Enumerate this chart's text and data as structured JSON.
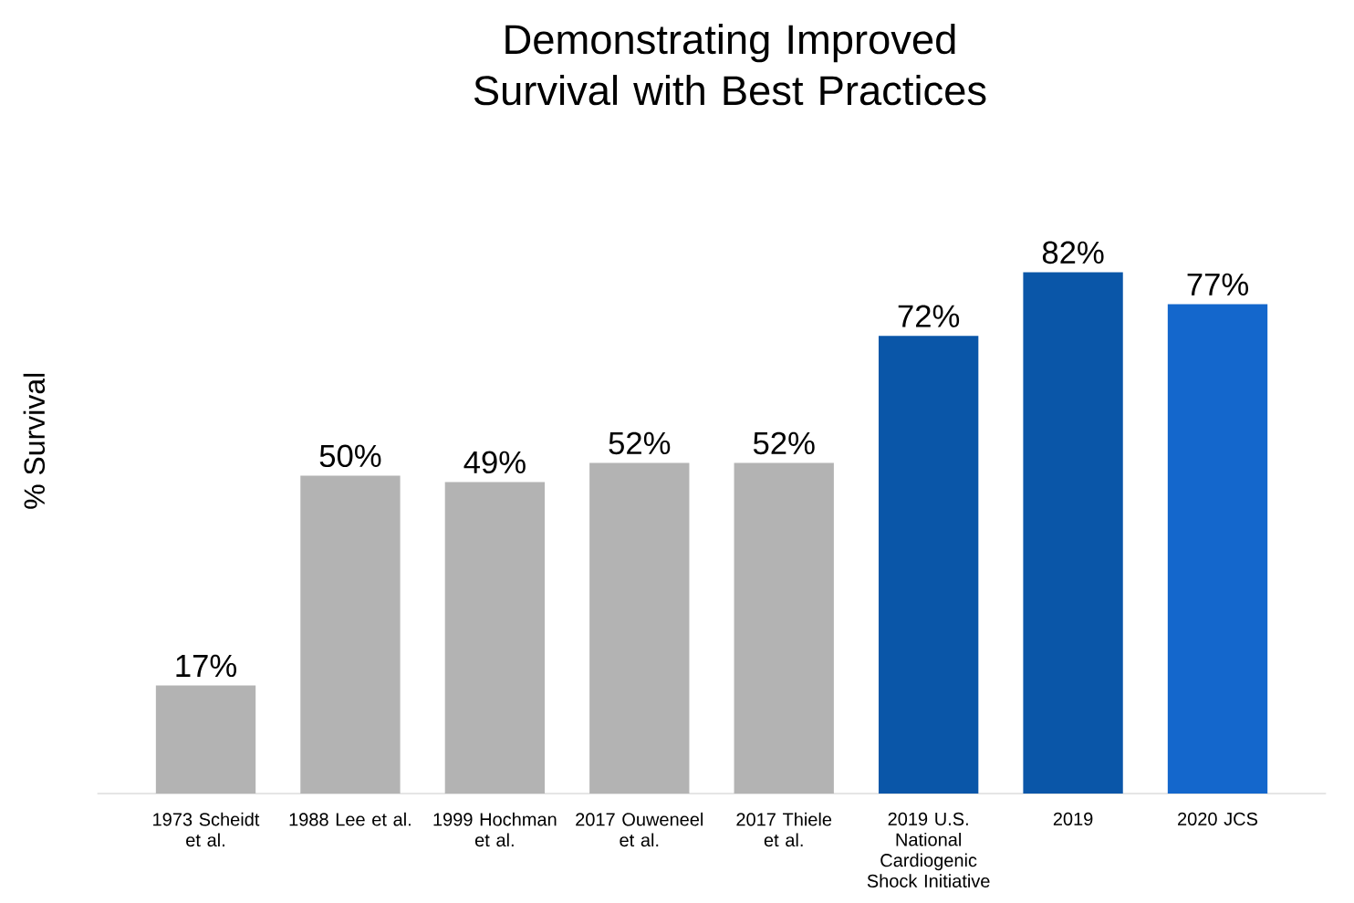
{
  "chart_data": {
    "type": "bar",
    "title": "Demonstrating Improved Survival with Best Practices",
    "ylabel": "% Survival",
    "categories": [
      "1973 Scheidt et al.",
      "1988 Lee et al.",
      "1999 Hochman et al.",
      "2017 Ouweneel et al.",
      "2017 Thiele et al.",
      "2019 U.S. National Cardiogenic Shock Initiative",
      "2019",
      "2020 JCS"
    ],
    "values": [
      17,
      50,
      49,
      52,
      52,
      72,
      82,
      77
    ],
    "value_labels": [
      "17%",
      "50%",
      "49%",
      "52%",
      "52%",
      "72%",
      "82%",
      "77%"
    ],
    "colors": [
      "#b3b3b3",
      "#b3b3b3",
      "#b3b3b3",
      "#b3b3b3",
      "#b3b3b3",
      "#0a56a8",
      "#0a56a8",
      "#1467cc"
    ]
  }
}
